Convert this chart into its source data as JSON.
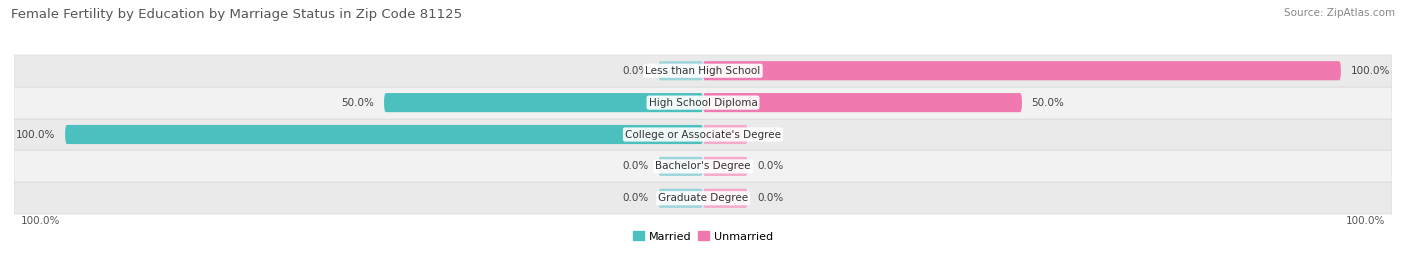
{
  "title": "Female Fertility by Education by Marriage Status in Zip Code 81125",
  "source": "Source: ZipAtlas.com",
  "categories": [
    "Less than High School",
    "High School Diploma",
    "College or Associate's Degree",
    "Bachelor's Degree",
    "Graduate Degree"
  ],
  "married": [
    0.0,
    50.0,
    100.0,
    0.0,
    0.0
  ],
  "unmarried": [
    100.0,
    50.0,
    0.0,
    0.0,
    0.0
  ],
  "married_color": "#4CBFBF",
  "unmarried_color": "#F07AAF",
  "married_placeholder_color": "#9DD5DC",
  "unmarried_placeholder_color": "#F5AACB",
  "row_bg_odd": "#F0F0F0",
  "row_bg_even": "#E8E8E8",
  "label_fontsize": 7.5,
  "title_fontsize": 9.5,
  "source_fontsize": 7.5,
  "value_fontsize": 7.5,
  "placeholder_size": 7,
  "legend_married": "Married",
  "legend_unmarried": "Unmarried"
}
